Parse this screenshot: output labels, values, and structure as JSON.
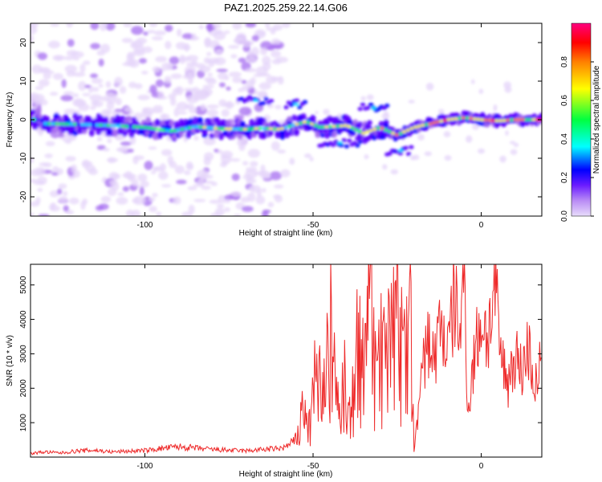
{
  "title": "PAZ1.2025.259.22.14.G06",
  "chart_data": [
    {
      "type": "heatmap",
      "xlabel": "Height of straight line (km)",
      "ylabel": "Frequency (Hz)",
      "xlim": [
        -134,
        18
      ],
      "ylim": [
        -25,
        25
      ],
      "xticks": [
        -100,
        -50,
        0
      ],
      "yticks": [
        -20,
        -10,
        0,
        10,
        20
      ],
      "colorbar": {
        "label": "Normalized spectral amplitude",
        "range": [
          0,
          1
        ],
        "ticks": [
          0.0,
          0.2,
          0.4,
          0.6,
          0.8
        ],
        "tick_labels": [
          "0.0",
          "0.2",
          "0.4",
          "0.6",
          "0.8"
        ],
        "colormap": [
          "#ffffff",
          "#e6d6fa",
          "#a56cf0",
          "#5a00ff",
          "#0000ff",
          "#00e0ff",
          "#00ff40",
          "#ffff00",
          "#ff8000",
          "#ff0000",
          "#ff0080"
        ]
      },
      "ridge": [
        {
          "x": -130,
          "y": -1.0
        },
        {
          "x": -120,
          "y": -1.2
        },
        {
          "x": -110,
          "y": -1.5
        },
        {
          "x": -100,
          "y": -2.0
        },
        {
          "x": -92,
          "y": -3.0
        },
        {
          "x": -85,
          "y": -1.8
        },
        {
          "x": -78,
          "y": -2.3
        },
        {
          "x": -70,
          "y": -2.5
        },
        {
          "x": -65,
          "y": -2.2
        },
        {
          "x": -60,
          "y": -2.5
        },
        {
          "x": -52,
          "y": -0.5
        },
        {
          "x": -48,
          "y": -2.0
        },
        {
          "x": -40,
          "y": -1.5
        },
        {
          "x": -35,
          "y": -3.5
        },
        {
          "x": -30,
          "y": -2.0
        },
        {
          "x": -25,
          "y": -4.0
        },
        {
          "x": -20,
          "y": -2.0
        },
        {
          "x": -15,
          "y": -1.0
        },
        {
          "x": -10,
          "y": 0.0
        },
        {
          "x": -5,
          "y": 0.5
        },
        {
          "x": 0,
          "y": 0.0
        },
        {
          "x": 5,
          "y": -0.3
        },
        {
          "x": 10,
          "y": 0.0
        },
        {
          "x": 18,
          "y": 0.0
        }
      ]
    },
    {
      "type": "line",
      "xlabel": "Height of straight line (km)",
      "ylabel": "SNR (10 * v/v)",
      "xlim": [
        -134,
        18
      ],
      "ylim": [
        0,
        5600
      ],
      "xticks": [
        -100,
        -50,
        0
      ],
      "yticks": [
        1000,
        2000,
        3000,
        4000,
        5000
      ],
      "color": "#ee2a2a",
      "series": [
        {
          "x": [
            -134,
            -130,
            -125,
            -120,
            -115,
            -110,
            -105,
            -100,
            -95,
            -90,
            -85,
            -80,
            -75,
            -70,
            -65,
            -60,
            -58,
            -55,
            -53,
            -51,
            -49,
            -47,
            -45,
            -43,
            -41,
            -39,
            -37,
            -35,
            -33,
            -31,
            -29,
            -27,
            -25,
            -23,
            -21,
            -20,
            -18,
            -16,
            -14,
            -12,
            -10,
            -8,
            -6,
            -5,
            -4,
            -2,
            0,
            2,
            4,
            6,
            8,
            10,
            12,
            14,
            16,
            18
          ],
          "y": [
            100,
            150,
            120,
            180,
            200,
            150,
            170,
            190,
            250,
            300,
            260,
            220,
            200,
            180,
            220,
            250,
            300,
            500,
            1200,
            800,
            2500,
            1500,
            3800,
            1800,
            2200,
            1000,
            3000,
            2500,
            4000,
            2000,
            3300,
            2800,
            4200,
            2500,
            3600,
            200,
            2000,
            3500,
            2800,
            4000,
            3000,
            4600,
            3500,
            5500,
            1200,
            3000,
            4000,
            3500,
            4800,
            2800,
            2200,
            3000,
            2500,
            3200,
            2000,
            2800
          ]
        }
      ]
    }
  ]
}
